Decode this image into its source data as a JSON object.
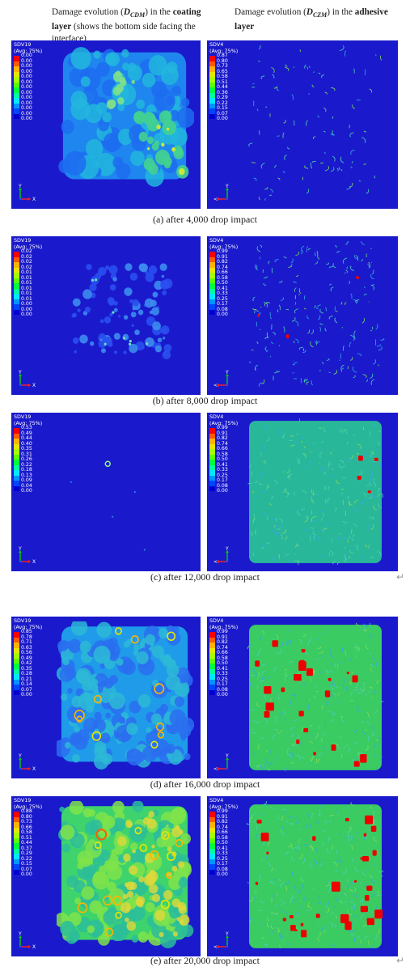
{
  "header": {
    "left": {
      "prefix": "Damage evolution (",
      "symbol": "D",
      "symbol_sub": "CDM",
      "mid": ") in the",
      "bold": "coating layer",
      "suffix": " (shows the bottom side facing the interface)"
    },
    "right": {
      "prefix": "Damage evolution (",
      "symbol": "D",
      "symbol_sub": "CZM",
      "mid": ") in the",
      "bold": "adhesive layer"
    }
  },
  "legend_colors": [
    "#ff0000",
    "#ff5a00",
    "#ffb300",
    "#e6e600",
    "#a6ff00",
    "#5cff00",
    "#00ff3c",
    "#00ff9c",
    "#00eaff",
    "#0096ff",
    "#0046ff",
    "#0000d0"
  ],
  "axis_labels": {
    "y": "Y",
    "x": "X"
  },
  "rows": [
    {
      "caption": "(a)  after 4,000 drop impact",
      "left": {
        "var": "SDV19",
        "avg": "(Avg: 75%)",
        "values": [
          "0.00",
          "0.00",
          "0.00",
          "0.00",
          "0.00",
          "0.00",
          "0.00",
          "0.00",
          "0.00",
          "0.00",
          "0.00",
          "0.00",
          "0.00"
        ]
      },
      "right": {
        "var": "SDV4",
        "avg": "(Avg: 75%)",
        "values": [
          "0.87",
          "0.80",
          "0.73",
          "0.65",
          "0.58",
          "0.51",
          "0.44",
          "0.36",
          "0.29",
          "0.22",
          "0.15",
          "0.07",
          "0.00"
        ]
      }
    },
    {
      "caption": "(b)  after 8,000 drop impact",
      "left": {
        "var": "SDV19",
        "avg": "(Avg: 75%)",
        "values": [
          "0.02",
          "0.02",
          "0.02",
          "0.02",
          "0.01",
          "0.01",
          "0.01",
          "0.01",
          "0.01",
          "0.01",
          "0.00",
          "0.00",
          "0.00"
        ]
      },
      "right": {
        "var": "SDV4",
        "avg": "(Avg: 75%)",
        "values": [
          "0.99",
          "0.91",
          "0.82",
          "0.74",
          "0.66",
          "0.58",
          "0.50",
          "0.41",
          "0.33",
          "0.25",
          "0.17",
          "0.08",
          "0.00"
        ]
      }
    },
    {
      "caption": "(c)  after 12,000 drop impact",
      "left": {
        "var": "SDV19",
        "avg": "(Avg: 75%)",
        "values": [
          "0.53",
          "0.49",
          "0.44",
          "0.40",
          "0.35",
          "0.31",
          "0.26",
          "0.22",
          "0.18",
          "0.13",
          "0.09",
          "0.04",
          "0.00"
        ]
      },
      "right": {
        "var": "SDV4",
        "avg": "(Avg: 75%)",
        "values": [
          "0.99",
          "0.91",
          "0.82",
          "0.74",
          "0.66",
          "0.58",
          "0.50",
          "0.41",
          "0.33",
          "0.25",
          "0.17",
          "0.08",
          "0.00"
        ]
      }
    },
    {
      "caption": "(d)  after 16,000 drop impact",
      "left": {
        "var": "SDV19",
        "avg": "(Avg: 75%)",
        "values": [
          "0.85",
          "0.78",
          "0.71",
          "0.63",
          "0.56",
          "0.49",
          "0.42",
          "0.35",
          "0.28",
          "0.21",
          "0.14",
          "0.07",
          "0.00"
        ]
      },
      "right": {
        "var": "SDV4",
        "avg": "(Avg: 75%)",
        "values": [
          "0.99",
          "0.91",
          "0.82",
          "0.74",
          "0.66",
          "0.58",
          "0.50",
          "0.41",
          "0.33",
          "0.25",
          "0.17",
          "0.08",
          "0.00"
        ]
      }
    },
    {
      "caption": "(e)  after 20,000 drop impact",
      "left": {
        "var": "SDV19",
        "avg": "(Avg: 75%)",
        "values": [
          "0.88",
          "0.80",
          "0.73",
          "0.66",
          "0.58",
          "0.51",
          "0.44",
          "0.37",
          "0.29",
          "0.22",
          "0.15",
          "0.07",
          "0.00"
        ]
      },
      "right": {
        "var": "SDV4",
        "avg": "(Avg: 75%)",
        "values": [
          "0.99",
          "0.91",
          "0.82",
          "0.74",
          "0.66",
          "0.58",
          "0.50",
          "0.41",
          "0.33",
          "0.25",
          "0.17",
          "0.08",
          "0.00"
        ]
      }
    }
  ],
  "return_mark": "↵"
}
